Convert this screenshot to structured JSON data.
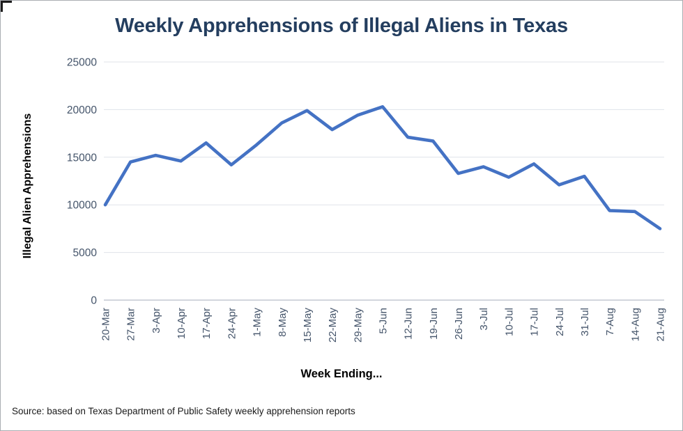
{
  "chart_data": {
    "type": "line",
    "title": "Weekly Apprehensions of Illegal Aliens in Texas",
    "xlabel": "Week Ending...",
    "ylabel": "Illegal Alien Apprehensions",
    "categories": [
      "20-Mar",
      "27-Mar",
      "3-Apr",
      "10-Apr",
      "17-Apr",
      "24-Apr",
      "1-May",
      "8-May",
      "15-May",
      "22-May",
      "29-May",
      "5-Jun",
      "12-Jun",
      "19-Jun",
      "26-Jun",
      "3-Jul",
      "10-Jul",
      "17-Jul",
      "24-Jul",
      "31-Jul",
      "7-Aug",
      "14-Aug",
      "21-Aug"
    ],
    "values": [
      10000,
      14500,
      15200,
      14600,
      16500,
      14200,
      16300,
      18600,
      19900,
      17900,
      19400,
      20300,
      17100,
      16700,
      13300,
      14000,
      12900,
      14300,
      12100,
      13000,
      9400,
      9300,
      7500
    ],
    "ylim": [
      0,
      25000
    ],
    "yticks": [
      0,
      5000,
      10000,
      15000,
      20000,
      25000
    ],
    "grid": true,
    "legend": false,
    "line_color": "#4472C4",
    "title_color": "#243E5F",
    "tick_label_color": "#44546A",
    "gridline_color": "#DFE3EA"
  },
  "source_note": "Source: based on Texas Department of Public Safety weekly apprehension reports"
}
